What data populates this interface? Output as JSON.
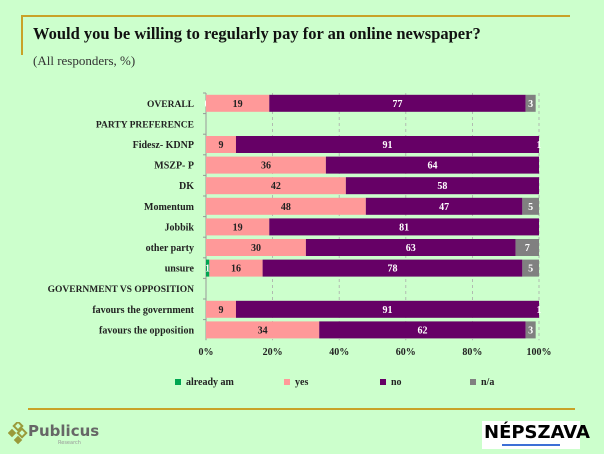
{
  "title": "Would you be willing to regularly pay for an online newspaper?",
  "subtitle": "(All responders, %)",
  "logos": {
    "publicus": "Publicus",
    "publicus_sub": "Research",
    "nepszava": "NÉPSZAVA"
  },
  "chart_data": {
    "type": "bar",
    "orientation": "horizontal-stacked-100",
    "categories": [
      "OVERALL",
      "PARTY PREFERENCE",
      "Fidesz- KDNP",
      "MSZP- P",
      "DK",
      "Momentum",
      "Jobbik",
      "other party",
      "unsure",
      "GOVERNMENT VS OPPOSITION",
      "favours the government",
      "favours the opposition"
    ],
    "bold_categories": [
      "OVERALL",
      "PARTY PREFERENCE",
      "GOVERNMENT VS OPPOSITION"
    ],
    "series": [
      {
        "name": "already am",
        "color": "#00a651",
        "values": [
          0,
          null,
          null,
          null,
          null,
          null,
          null,
          null,
          1,
          null,
          null,
          null
        ]
      },
      {
        "name": "yes",
        "color": "#ff9999",
        "values": [
          19,
          null,
          9,
          36,
          42,
          48,
          19,
          30,
          16,
          null,
          9,
          34
        ]
      },
      {
        "name": "no",
        "color": "#660066",
        "values": [
          77,
          null,
          91,
          64,
          58,
          47,
          81,
          63,
          78,
          null,
          91,
          62
        ]
      },
      {
        "name": "n/a",
        "color": "#808080",
        "values": [
          3,
          null,
          1,
          null,
          null,
          5,
          null,
          7,
          5,
          null,
          1,
          3
        ]
      }
    ],
    "xlim": [
      0,
      100
    ],
    "xticks": [
      "0%",
      "20%",
      "40%",
      "60%",
      "80%",
      "100%"
    ],
    "grid": true,
    "legend": "bottom"
  }
}
